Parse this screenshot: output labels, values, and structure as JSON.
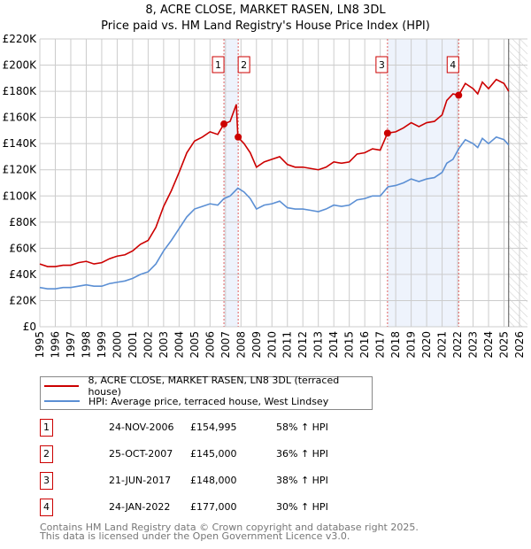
{
  "chart_data": {
    "type": "line",
    "title": "8, ACRE CLOSE, MARKET RASEN, LN8 3DL",
    "subtitle": "Price paid vs. HM Land Registry's House Price Index (HPI)",
    "xlim": [
      1995,
      2026
    ],
    "ylim": [
      0,
      220000
    ],
    "x_ticks": [
      "1995",
      "1996",
      "1997",
      "1998",
      "1999",
      "2000",
      "2001",
      "2002",
      "2003",
      "2004",
      "2005",
      "2006",
      "2007",
      "2008",
      "2009",
      "2010",
      "2011",
      "2012",
      "2013",
      "2014",
      "2015",
      "2016",
      "2017",
      "2018",
      "2019",
      "2020",
      "2021",
      "2022",
      "2023",
      "2024",
      "2025",
      "2026"
    ],
    "y_ticks": [
      "£0",
      "£20K",
      "£40K",
      "£60K",
      "£80K",
      "£100K",
      "£120K",
      "£140K",
      "£160K",
      "£180K",
      "£200K",
      "£220K"
    ],
    "grid": true,
    "forecast_hatch_from": 2025.3,
    "series": [
      {
        "name": "8, ACRE CLOSE, MARKET RASEN, LN8 3DL (terraced house)",
        "color": "#cc0000",
        "points": [
          [
            1995,
            48
          ],
          [
            1995.5,
            46
          ],
          [
            1996,
            46
          ],
          [
            1996.5,
            47
          ],
          [
            1997,
            47
          ],
          [
            1997.5,
            49
          ],
          [
            1998,
            50
          ],
          [
            1998.5,
            48
          ],
          [
            1999,
            49
          ],
          [
            1999.5,
            52
          ],
          [
            2000,
            54
          ],
          [
            2000.5,
            55
          ],
          [
            2001,
            58
          ],
          [
            2001.5,
            63
          ],
          [
            2002,
            66
          ],
          [
            2002.5,
            76
          ],
          [
            2003,
            92
          ],
          [
            2003.5,
            104
          ],
          [
            2004,
            118
          ],
          [
            2004.5,
            133
          ],
          [
            2005,
            142
          ],
          [
            2005.5,
            145
          ],
          [
            2006,
            149
          ],
          [
            2006.5,
            147
          ],
          [
            2006.9,
            155
          ],
          [
            2007.3,
            157
          ],
          [
            2007.7,
            170
          ],
          [
            2007.8,
            145
          ],
          [
            2008.2,
            140
          ],
          [
            2008.6,
            133
          ],
          [
            2009,
            122
          ],
          [
            2009.5,
            126
          ],
          [
            2010,
            128
          ],
          [
            2010.5,
            130
          ],
          [
            2011,
            124
          ],
          [
            2011.5,
            122
          ],
          [
            2012,
            122
          ],
          [
            2012.5,
            121
          ],
          [
            2013,
            120
          ],
          [
            2013.5,
            122
          ],
          [
            2014,
            126
          ],
          [
            2014.5,
            125
          ],
          [
            2015,
            126
          ],
          [
            2015.5,
            132
          ],
          [
            2016,
            133
          ],
          [
            2016.5,
            136
          ],
          [
            2017,
            135
          ],
          [
            2017.47,
            148
          ],
          [
            2018,
            149
          ],
          [
            2018.5,
            152
          ],
          [
            2019,
            156
          ],
          [
            2019.5,
            153
          ],
          [
            2020,
            156
          ],
          [
            2020.5,
            157
          ],
          [
            2021,
            162
          ],
          [
            2021.3,
            173
          ],
          [
            2021.7,
            178
          ],
          [
            2022.07,
            177
          ],
          [
            2022.5,
            186
          ],
          [
            2023,
            182
          ],
          [
            2023.3,
            178
          ],
          [
            2023.6,
            187
          ],
          [
            2024,
            182
          ],
          [
            2024.5,
            189
          ],
          [
            2025,
            186
          ],
          [
            2025.3,
            180
          ]
        ]
      },
      {
        "name": "HPI: Average price, terraced house, West Lindsey",
        "color": "#5b8fd4",
        "points": [
          [
            1995,
            30
          ],
          [
            1995.5,
            29
          ],
          [
            1996,
            29
          ],
          [
            1996.5,
            30
          ],
          [
            1997,
            30
          ],
          [
            1997.5,
            31
          ],
          [
            1998,
            32
          ],
          [
            1998.5,
            31
          ],
          [
            1999,
            31
          ],
          [
            1999.5,
            33
          ],
          [
            2000,
            34
          ],
          [
            2000.5,
            35
          ],
          [
            2001,
            37
          ],
          [
            2001.5,
            40
          ],
          [
            2002,
            42
          ],
          [
            2002.5,
            48
          ],
          [
            2003,
            58
          ],
          [
            2003.5,
            66
          ],
          [
            2004,
            75
          ],
          [
            2004.5,
            84
          ],
          [
            2005,
            90
          ],
          [
            2005.5,
            92
          ],
          [
            2006,
            94
          ],
          [
            2006.5,
            93
          ],
          [
            2006.9,
            98
          ],
          [
            2007.3,
            100
          ],
          [
            2007.8,
            106
          ],
          [
            2008.2,
            103
          ],
          [
            2008.6,
            98
          ],
          [
            2009,
            90
          ],
          [
            2009.5,
            93
          ],
          [
            2010,
            94
          ],
          [
            2010.5,
            96
          ],
          [
            2011,
            91
          ],
          [
            2011.5,
            90
          ],
          [
            2012,
            90
          ],
          [
            2012.5,
            89
          ],
          [
            2013,
            88
          ],
          [
            2013.5,
            90
          ],
          [
            2014,
            93
          ],
          [
            2014.5,
            92
          ],
          [
            2015,
            93
          ],
          [
            2015.5,
            97
          ],
          [
            2016,
            98
          ],
          [
            2016.5,
            100
          ],
          [
            2017,
            100
          ],
          [
            2017.5,
            107
          ],
          [
            2018,
            108
          ],
          [
            2018.5,
            110
          ],
          [
            2019,
            113
          ],
          [
            2019.5,
            111
          ],
          [
            2020,
            113
          ],
          [
            2020.5,
            114
          ],
          [
            2021,
            118
          ],
          [
            2021.3,
            125
          ],
          [
            2021.7,
            128
          ],
          [
            2022.07,
            136
          ],
          [
            2022.5,
            143
          ],
          [
            2023,
            140
          ],
          [
            2023.3,
            137
          ],
          [
            2023.6,
            144
          ],
          [
            2024,
            140
          ],
          [
            2024.5,
            145
          ],
          [
            2025,
            143
          ],
          [
            2025.3,
            139
          ]
        ]
      }
    ],
    "sales": [
      {
        "id": "1",
        "x": 2006.9,
        "value": 154995,
        "date": "24-NOV-2006",
        "price": "£154,995",
        "hpi": "58% ↑ HPI"
      },
      {
        "id": "2",
        "x": 2007.82,
        "value": 145000,
        "date": "25-OCT-2007",
        "price": "£145,000",
        "hpi": "36% ↑ HPI"
      },
      {
        "id": "3",
        "x": 2017.47,
        "value": 148000,
        "date": "21-JUN-2017",
        "price": "£148,000",
        "hpi": "38% ↑ HPI"
      },
      {
        "id": "4",
        "x": 2022.07,
        "value": 177000,
        "date": "24-JAN-2022",
        "price": "£177,000",
        "hpi": "30% ↑ HPI"
      }
    ],
    "shaded_ranges": [
      [
        2006.9,
        2007.82
      ],
      [
        2017.47,
        2022.07
      ]
    ]
  },
  "legend": {
    "red": "8, ACRE CLOSE, MARKET RASEN, LN8 3DL (terraced house)",
    "blue": "HPI: Average price, terraced house, West Lindsey"
  },
  "footer": {
    "line1": "Contains HM Land Registry data © Crown copyright and database right 2025.",
    "line2": "This data is licensed under the Open Government Licence v3.0."
  }
}
